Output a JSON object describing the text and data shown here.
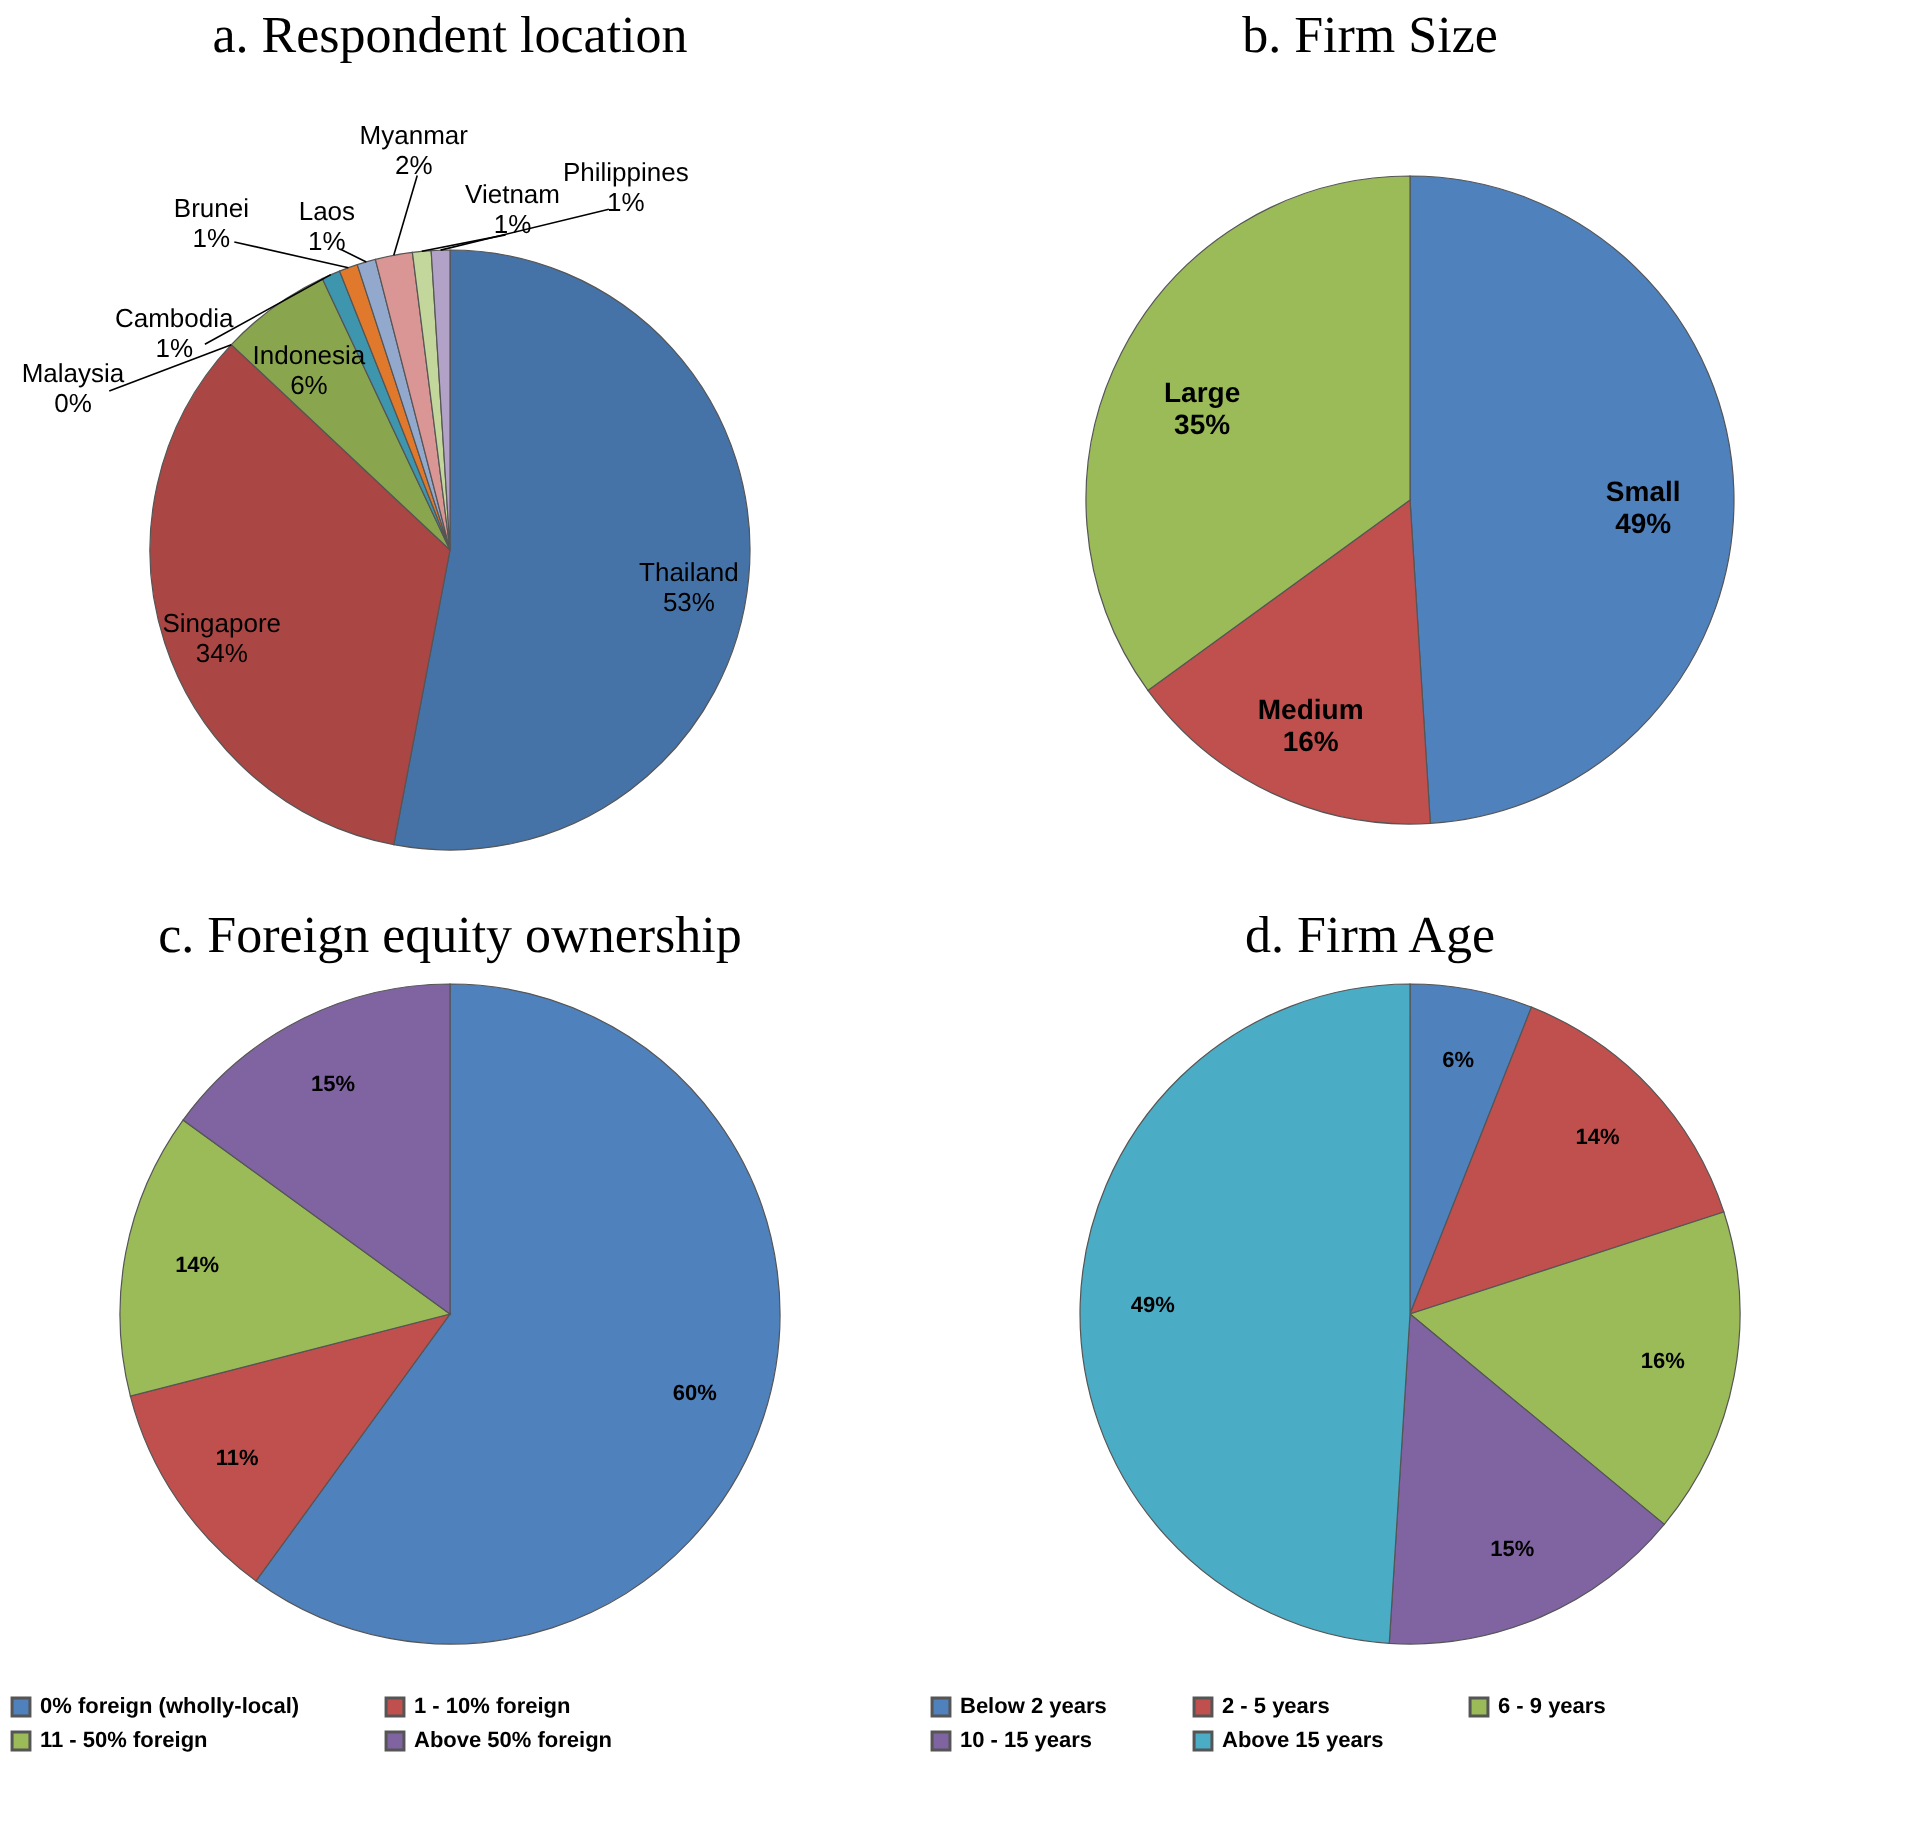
{
  "chart_data": [
    {
      "type": "pie",
      "title": "a. Respondent location",
      "categories": [
        "Thailand",
        "Singapore",
        "Malaysia",
        "Indonesia",
        "Cambodia",
        "Brunei",
        "Laos",
        "Myanmar",
        "Vietnam",
        "Philippines"
      ],
      "values": [
        53,
        34,
        0,
        6,
        1,
        1,
        1,
        2,
        1,
        1
      ],
      "value_labels": [
        "53%",
        "34%",
        "0%",
        "6%",
        "1%",
        "1%",
        "1%",
        "2%",
        "1%",
        "1%"
      ],
      "colors": [
        "#4572a7",
        "#aa4643",
        "#4198af",
        "#89a54e",
        "#3d96ae",
        "#e0792b",
        "#92a8cd",
        "#d99694",
        "#c3d69b",
        "#b3a2c7"
      ],
      "legend": false
    },
    {
      "type": "pie",
      "title": "b. Firm Size",
      "categories": [
        "Small",
        "Medium",
        "Large"
      ],
      "values": [
        49,
        16,
        35
      ],
      "value_labels": [
        "49%",
        "16%",
        "35%"
      ],
      "colors": [
        "#4f81bd",
        "#c0504d",
        "#9bbb59"
      ],
      "legend": false
    },
    {
      "type": "pie",
      "title": "c. Foreign equity ownership",
      "categories": [
        "0% foreign (wholly-local)",
        "1 - 10% foreign",
        "11 - 50% foreign",
        "Above 50% foreign"
      ],
      "values": [
        60,
        11,
        14,
        15
      ],
      "value_labels": [
        "60%",
        "11%",
        "14%",
        "15%"
      ],
      "colors": [
        "#4f81bd",
        "#c0504d",
        "#9bbb59",
        "#8064a2"
      ],
      "legend": "bottom"
    },
    {
      "type": "pie",
      "title": "d. Firm Age",
      "categories": [
        "Below 2 years",
        "2 - 5 years",
        "6 - 9 years",
        "10 - 15 years",
        "Above 15 years"
      ],
      "values": [
        6,
        14,
        16,
        15,
        49
      ],
      "value_labels": [
        "6%",
        "14%",
        "16%",
        "15%",
        "49%"
      ],
      "colors": [
        "#4f81bd",
        "#c0504d",
        "#9bbb59",
        "#8064a2",
        "#4bacc6"
      ],
      "legend": "bottom"
    }
  ]
}
